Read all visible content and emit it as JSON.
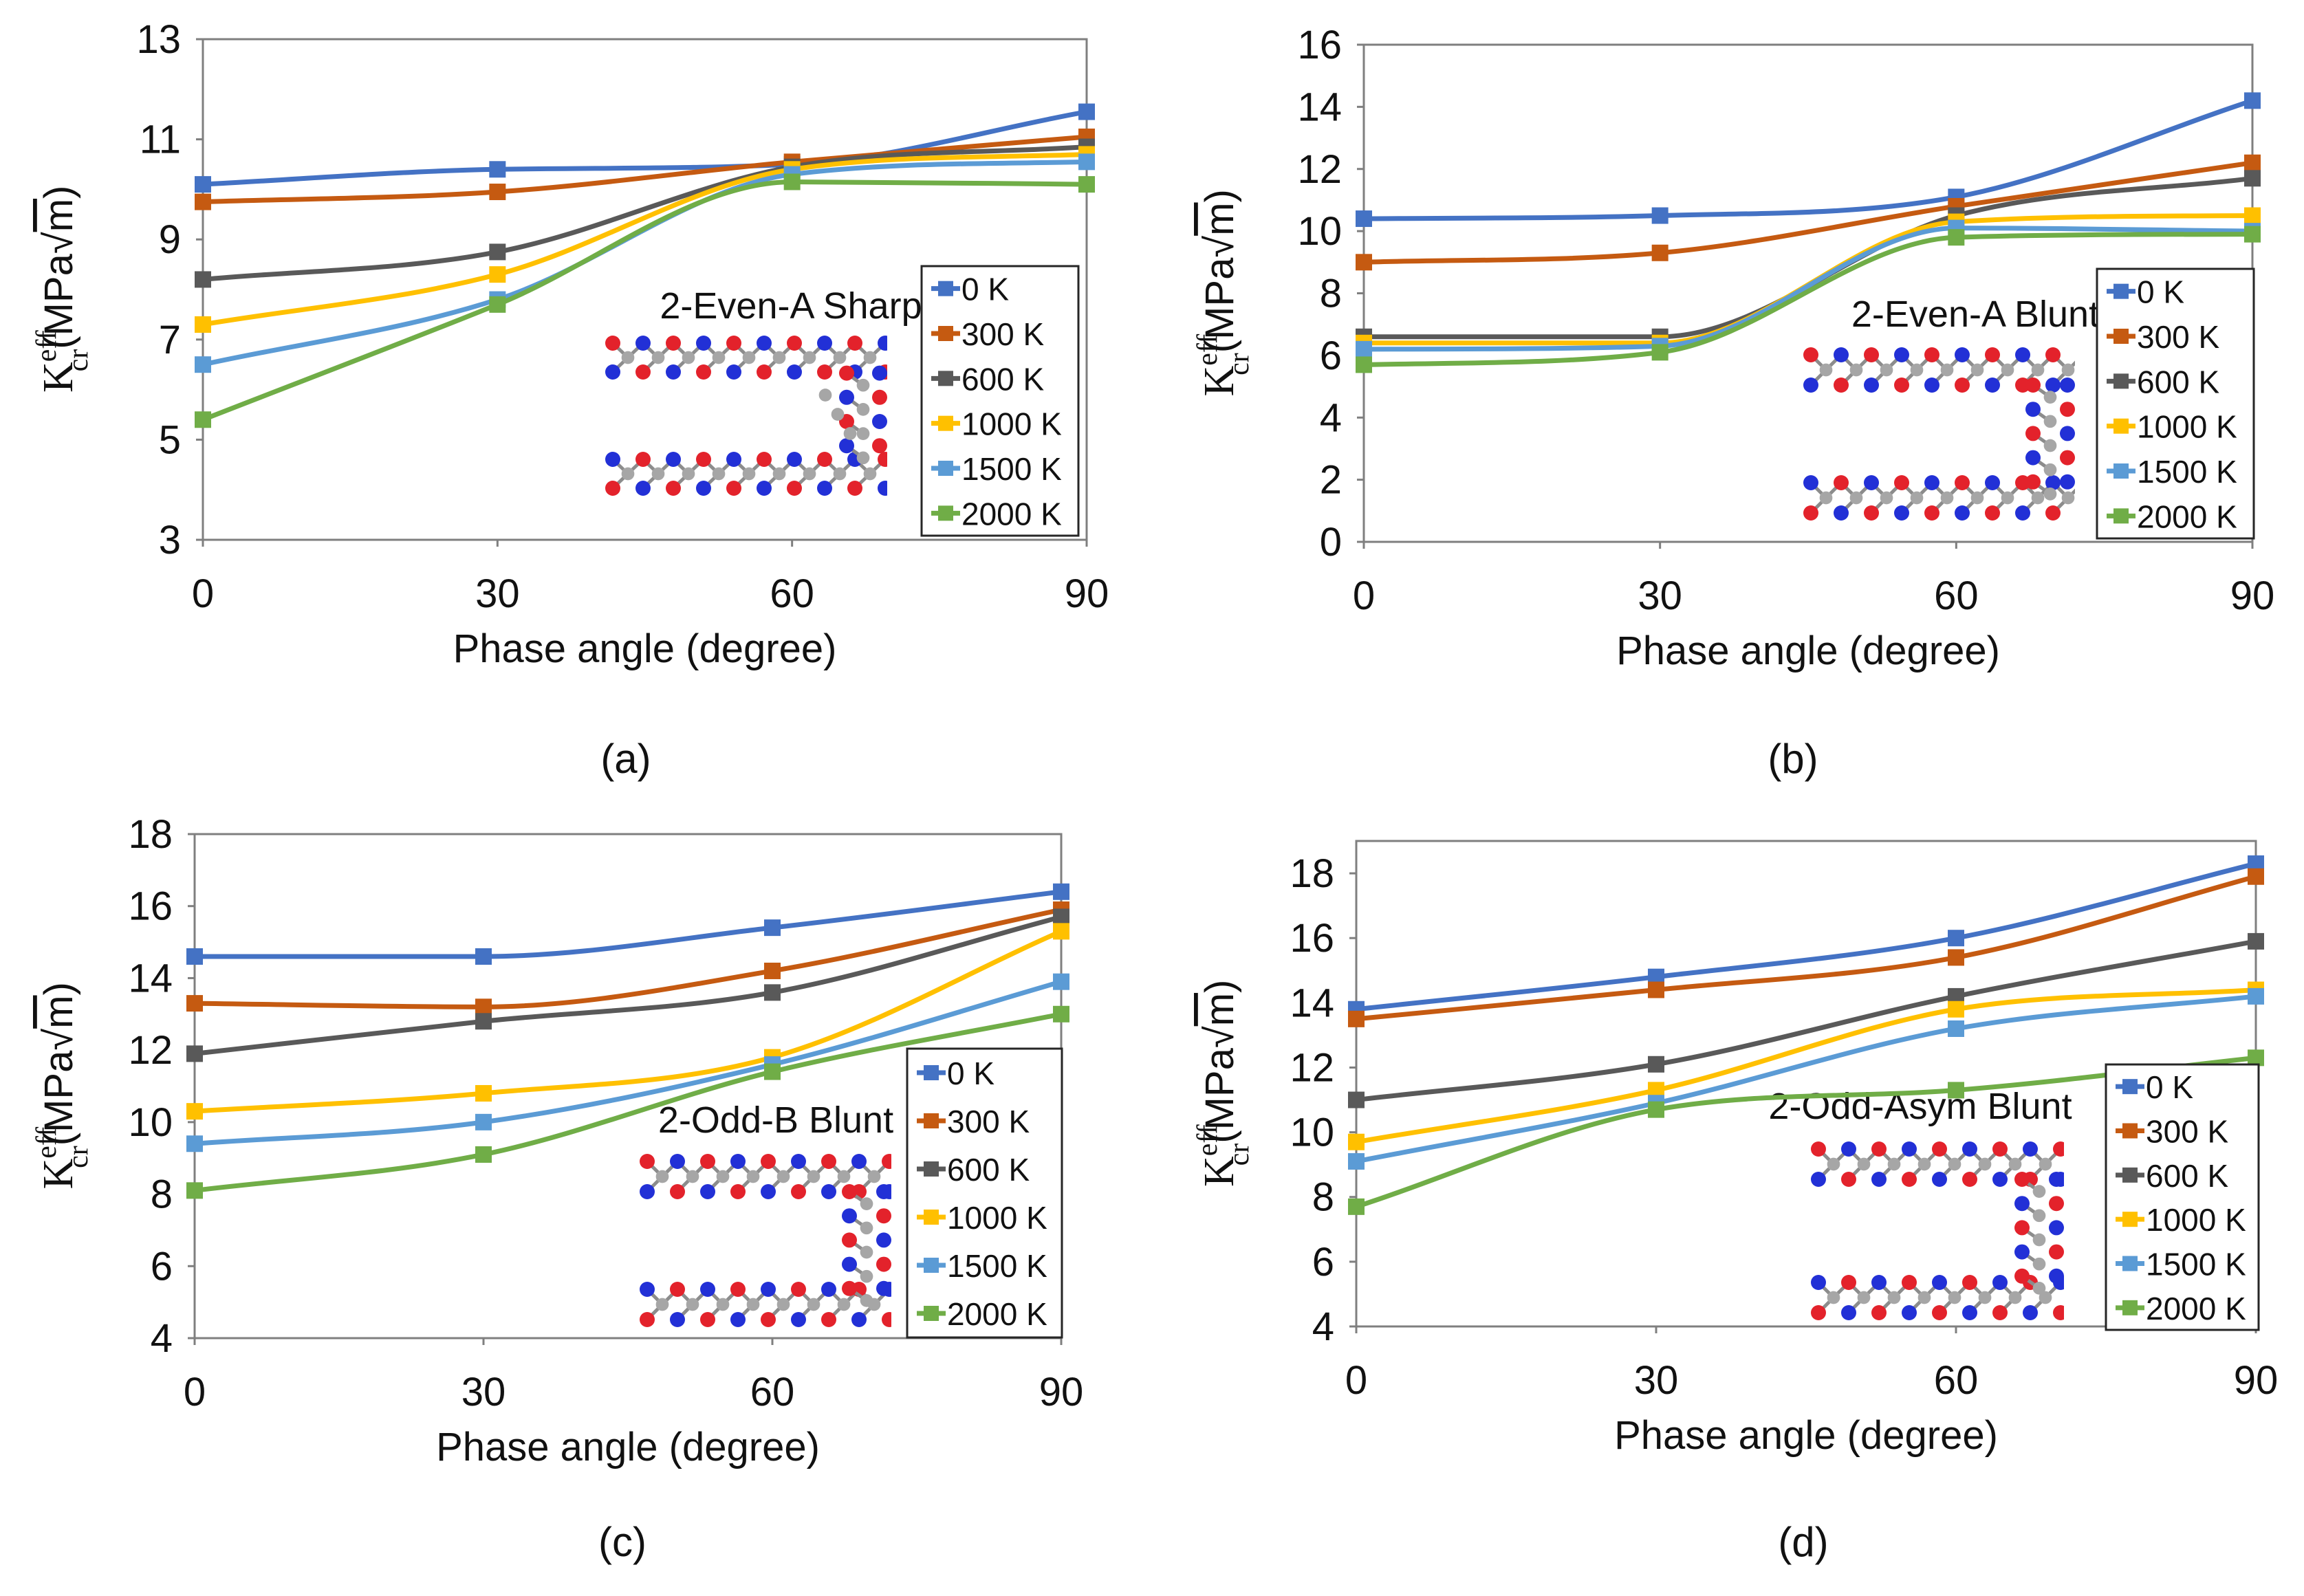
{
  "figure": {
    "series_colors": [
      "#4472C4",
      "#C55A11",
      "#595959",
      "#FFC000",
      "#5B9BD5",
      "#70AD47"
    ],
    "atom_colors": {
      "carbon": "#A6A6A6",
      "oxygen": "#E3222B",
      "nitrogen": "#2230D6"
    }
  },
  "chart_data": [
    {
      "panel": "(a)",
      "type": "line",
      "annotation": "2-Even-A Sharp",
      "xlabel": "Phase angle (degree)",
      "ylabel": "K_cr^eff (MPa√m)",
      "ylabel_main": "K",
      "ylabel_sup": "eff",
      "ylabel_sub": "cr",
      "ylabel_units": "(MPa",
      "ylabel_radical": "m",
      "ylabel_close": ")",
      "x": [
        0,
        30,
        60,
        90
      ],
      "xlim": [
        0,
        90
      ],
      "ylim": [
        3,
        13
      ],
      "yticks": [
        3,
        5,
        7,
        9,
        11,
        13
      ],
      "xticks": [
        0,
        30,
        60,
        90
      ],
      "legend_position": "lower-right",
      "series": [
        {
          "name": "0 K",
          "values": [
            10.1,
            10.4,
            10.5,
            11.55
          ]
        },
        {
          "name": "300 K",
          "values": [
            9.75,
            9.95,
            10.55,
            11.05
          ]
        },
        {
          "name": "600 K",
          "values": [
            8.2,
            8.75,
            10.45,
            10.85
          ]
        },
        {
          "name": "1000 K",
          "values": [
            7.3,
            8.3,
            10.4,
            10.7
          ]
        },
        {
          "name": "1500 K",
          "values": [
            6.5,
            7.8,
            10.3,
            10.55
          ]
        },
        {
          "name": "2000 K",
          "values": [
            5.4,
            7.7,
            10.15,
            10.1
          ]
        }
      ]
    },
    {
      "panel": "(b)",
      "type": "line",
      "annotation": "2-Even-A Blunt",
      "xlabel": "Phase angle (degree)",
      "ylabel": "K_cr^eff (MPa√m)",
      "ylabel_main": "K",
      "ylabel_sup": "eff",
      "ylabel_sub": "cr",
      "ylabel_units": "(MPa",
      "ylabel_radical": "m",
      "ylabel_close": ")",
      "x": [
        0,
        30,
        60,
        90
      ],
      "xlim": [
        0,
        90
      ],
      "ylim": [
        0,
        16
      ],
      "yticks": [
        0,
        2,
        4,
        6,
        8,
        10,
        12,
        14,
        16
      ],
      "xticks": [
        0,
        30,
        60,
        90
      ],
      "legend_position": "lower-right",
      "series": [
        {
          "name": "0 K",
          "values": [
            10.4,
            10.5,
            11.1,
            14.2
          ]
        },
        {
          "name": "300 K",
          "values": [
            9.0,
            9.3,
            10.8,
            12.2
          ]
        },
        {
          "name": "600 K",
          "values": [
            6.6,
            6.6,
            10.5,
            11.7
          ]
        },
        {
          "name": "1000 K",
          "values": [
            6.4,
            6.4,
            10.3,
            10.5
          ]
        },
        {
          "name": "1500 K",
          "values": [
            6.2,
            6.3,
            10.1,
            10.0
          ]
        },
        {
          "name": "2000 K",
          "values": [
            5.7,
            6.1,
            9.8,
            9.9
          ]
        }
      ]
    },
    {
      "panel": "(c)",
      "type": "line",
      "annotation": "2-Odd-B Blunt",
      "xlabel": "Phase angle (degree)",
      "ylabel": "K_cr^eff (MPa√m)",
      "ylabel_main": "K",
      "ylabel_sup": "eff",
      "ylabel_sub": "cr",
      "ylabel_units": "(MPa",
      "ylabel_radical": "m",
      "ylabel_close": ")",
      "x": [
        0,
        30,
        60,
        90
      ],
      "xlim": [
        0,
        90
      ],
      "ylim": [
        4,
        18
      ],
      "yticks": [
        4,
        6,
        8,
        10,
        12,
        14,
        16,
        18
      ],
      "xticks": [
        0,
        30,
        60,
        90
      ],
      "legend_position": "lower-right",
      "series": [
        {
          "name": "0 K",
          "values": [
            14.6,
            14.6,
            15.4,
            16.4
          ]
        },
        {
          "name": "300 K",
          "values": [
            13.3,
            13.2,
            14.2,
            15.9
          ]
        },
        {
          "name": "600 K",
          "values": [
            11.9,
            12.8,
            13.6,
            15.7
          ]
        },
        {
          "name": "1000 K",
          "values": [
            10.3,
            10.8,
            11.8,
            15.3
          ]
        },
        {
          "name": "1500 K",
          "values": [
            9.4,
            10.0,
            11.6,
            13.9
          ]
        },
        {
          "name": "2000 K",
          "values": [
            8.1,
            9.1,
            11.4,
            13.0
          ]
        }
      ]
    },
    {
      "panel": "(d)",
      "type": "line",
      "annotation": "2-Odd-Asym Blunt",
      "xlabel": "Phase angle (degree)",
      "ylabel": "K_cr^eff (MPa√m)",
      "ylabel_main": "K",
      "ylabel_sup": "eff",
      "ylabel_sub": "cr",
      "ylabel_units": "(MPa",
      "ylabel_radical": "m",
      "ylabel_close": ")",
      "x": [
        0,
        30,
        60,
        90
      ],
      "xlim": [
        0,
        90
      ],
      "ylim": [
        4,
        19
      ],
      "yticks": [
        4,
        6,
        8,
        10,
        12,
        14,
        16,
        18
      ],
      "xticks": [
        0,
        30,
        60,
        90
      ],
      "legend_position": "lower-right",
      "series": [
        {
          "name": "0 K",
          "values": [
            13.8,
            14.8,
            16.0,
            18.3
          ]
        },
        {
          "name": "300 K",
          "values": [
            13.5,
            14.4,
            15.4,
            17.9
          ]
        },
        {
          "name": "600 K",
          "values": [
            11.0,
            12.1,
            14.2,
            15.9
          ]
        },
        {
          "name": "1000 K",
          "values": [
            9.7,
            11.3,
            13.8,
            14.4
          ]
        },
        {
          "name": "1500 K",
          "values": [
            9.1,
            10.9,
            13.2,
            14.2
          ]
        },
        {
          "name": "2000 K",
          "values": [
            7.7,
            10.7,
            11.3,
            12.3
          ]
        }
      ]
    }
  ]
}
